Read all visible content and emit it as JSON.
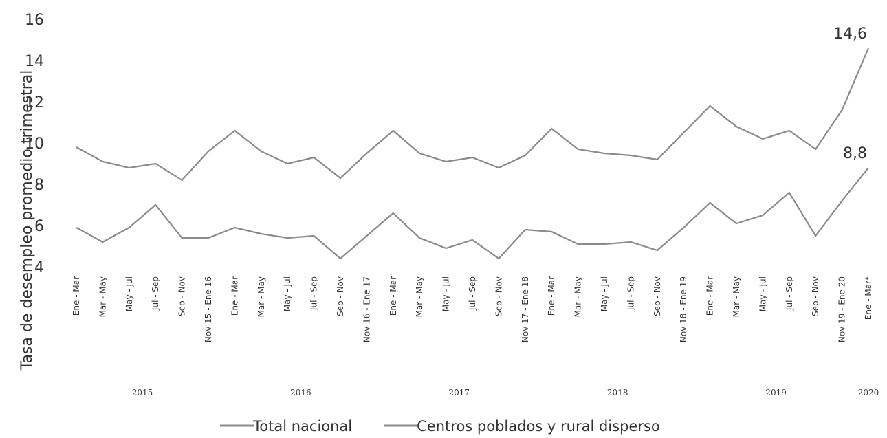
{
  "chart_data": {
    "type": "line",
    "y_label": "Tasa de desempleo promedio trimestral",
    "categories": [
      "Ene - Mar",
      "Mar - May",
      "May - Jul",
      "Jul - Sep",
      "Sep - Nov",
      "Nov 15 - Ene 16",
      "Ene - Mar",
      "Mar - May",
      "May - Jul",
      "Jul - Sep",
      "Sep - Nov",
      "Nov 16 - Ene 17",
      "Ene - Mar",
      "Mar - May",
      "May - Jul",
      "Jul - Sep",
      "Sep - Nov",
      "Nov 17 - Ene 18",
      "Ene - Mar",
      "Mar - May",
      "May - Jul",
      "Jul - Sep",
      "Sep - Nov",
      "Nov 18 - Ene 19",
      "Ene - Mar",
      "Mar - May",
      "May - Jul",
      "Jul - Sep",
      "Sep - Nov",
      "Nov 19 - Ene 20",
      "Ene - Mar*"
    ],
    "years": [
      "2015",
      "2016",
      "2017",
      "2018",
      "2019",
      "2020"
    ],
    "series": [
      {
        "name": "Total nacional",
        "color": "#8a8a8a",
        "values": [
          9.8,
          9.1,
          8.8,
          9.0,
          8.2,
          9.6,
          10.6,
          9.6,
          9.0,
          9.3,
          8.3,
          9.5,
          10.6,
          9.5,
          9.1,
          9.3,
          8.8,
          9.4,
          10.7,
          9.7,
          9.5,
          9.4,
          9.2,
          10.5,
          11.8,
          10.8,
          10.2,
          10.6,
          9.7,
          11.6,
          14.6
        ],
        "value_labels": [
          null,
          null,
          null,
          null,
          null,
          null,
          null,
          null,
          null,
          null,
          null,
          null,
          null,
          null,
          null,
          null,
          null,
          null,
          null,
          null,
          null,
          null,
          null,
          null,
          null,
          null,
          null,
          null,
          null,
          null,
          "14,6"
        ]
      },
      {
        "name": "Centros poblados y rural disperso",
        "color": "#8a8a8a",
        "values": [
          5.9,
          5.2,
          5.9,
          7.0,
          5.4,
          5.4,
          5.9,
          5.6,
          5.4,
          5.5,
          4.4,
          5.5,
          6.6,
          5.4,
          4.9,
          5.3,
          4.4,
          5.8,
          5.7,
          5.1,
          5.1,
          5.2,
          4.8,
          5.9,
          7.1,
          6.1,
          6.5,
          7.6,
          5.5,
          7.2,
          8.8
        ],
        "value_labels": [
          null,
          null,
          null,
          null,
          null,
          null,
          null,
          null,
          null,
          null,
          null,
          null,
          null,
          null,
          null,
          null,
          null,
          null,
          null,
          null,
          null,
          null,
          null,
          null,
          null,
          null,
          null,
          null,
          null,
          null,
          "8,8"
        ]
      }
    ],
    "ylim": [
      4,
      16
    ],
    "yticks": [
      4,
      6,
      8,
      10,
      12,
      14,
      16
    ],
    "grid": false,
    "legend": "bottom"
  }
}
